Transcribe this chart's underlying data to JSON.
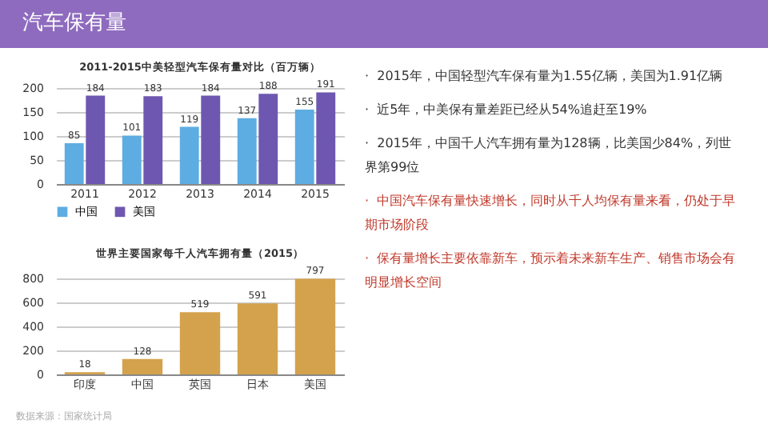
{
  "chart_data": [
    {
      "type": "other",
      "title": "汽车保有量",
      "annotations": [
        "·  2015年，中国轻型汽车保有量为1.55亿辆，美国为1.91亿辆",
        "·  近5年，中美保有量差距已经从54%追赶至19%",
        "·  2015年，中国千人汽车拥有量为128辆，比美国少84%，列世界第99位",
        "·  中国汽车保有量快速增长，同时从千人均保有量来看，仍处于早期市场阶段",
        "·  保有量增长主要依靠新车，预示着未来新车生产、销售市场会有明显增长空间",
        "数据来源：国家统计局"
      ],
      "colors": [
        "#333333",
        "#333333",
        "#333333",
        "#c0392b",
        "#c0392b",
        "#aaaaaa"
      ]
    },
    {
      "type": "bar",
      "title": "2011-2015中美轻型汽车保有量对比（百万辆）",
      "categories": [
        "2011",
        "2012",
        "2013",
        "2014",
        "2015"
      ],
      "series": [
        {
          "name": "中国",
          "color": "#5dade2",
          "values": [
            85,
            101,
            119,
            137,
            155
          ]
        },
        {
          "name": "美国",
          "color": "#6e57b0",
          "values": [
            184,
            183,
            184,
            188,
            191
          ]
        }
      ],
      "ylim": [
        0,
        200
      ],
      "yticks": [
        0,
        50,
        100,
        150,
        200
      ],
      "grid": "y",
      "legend": "bottom left",
      "data_labels": true
    },
    {
      "type": "bar",
      "title": "世界主要国家每千人汽车拥有量（2015）",
      "categories": [
        "印度",
        "中国",
        "英国",
        "日本",
        "美国"
      ],
      "values": [
        18,
        128,
        519,
        591,
        797
      ],
      "color": "#d4a24c",
      "ylim": [
        0,
        800
      ],
      "yticks": [
        0,
        200,
        400,
        600,
        800
      ],
      "grid": "y",
      "data_labels": true
    }
  ]
}
